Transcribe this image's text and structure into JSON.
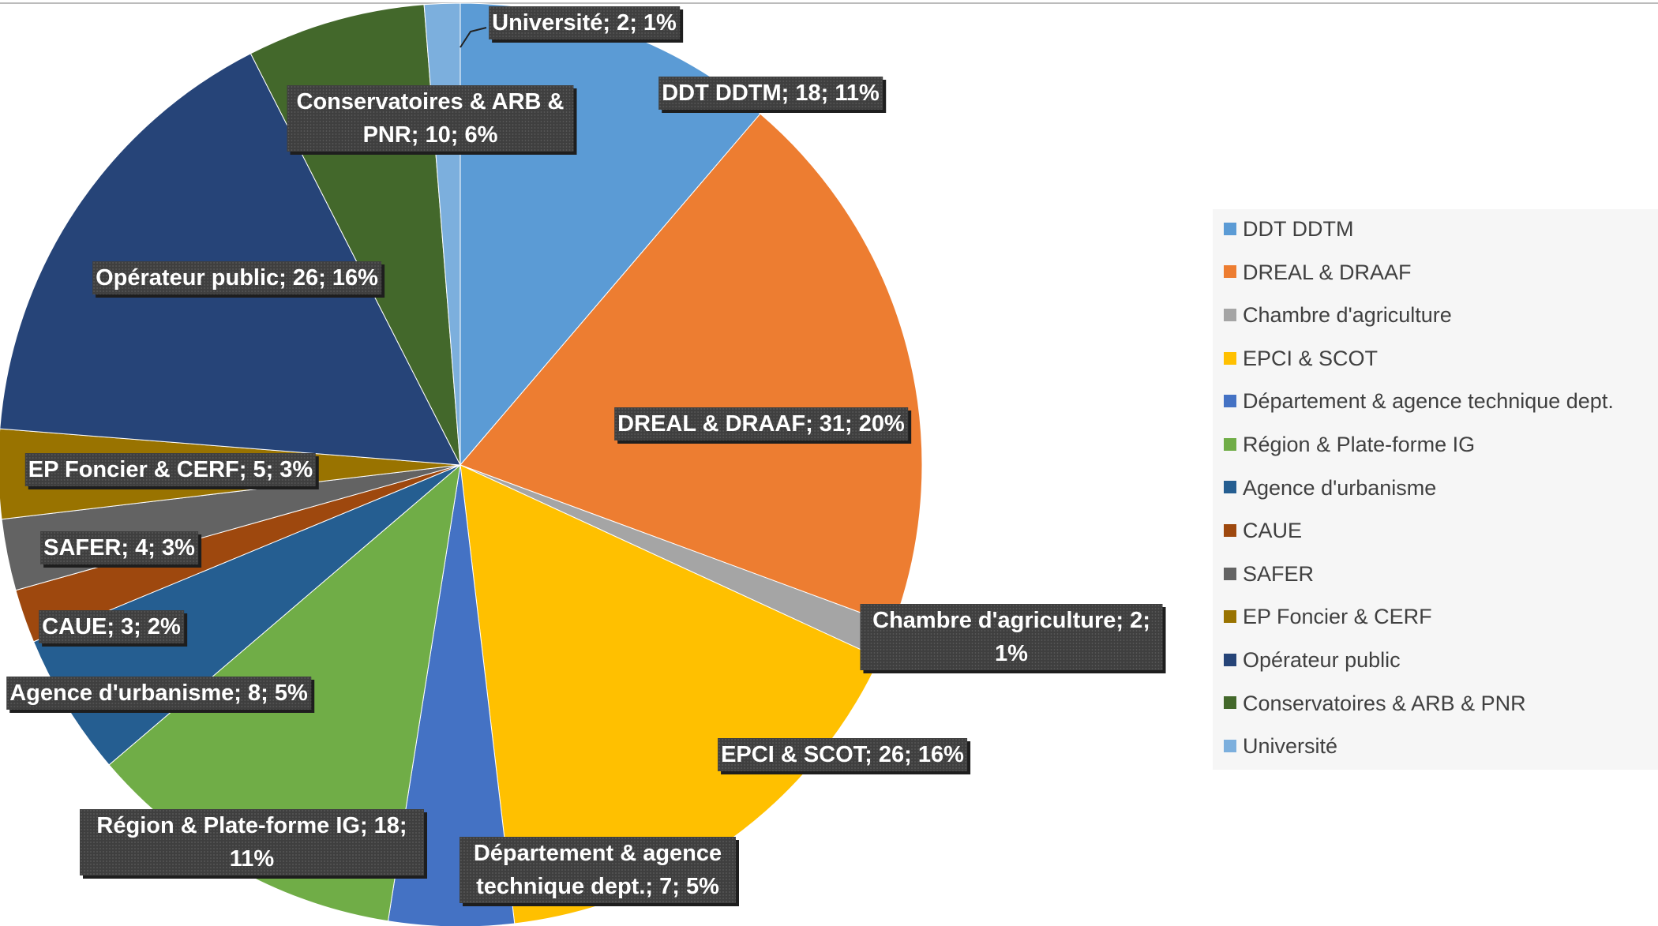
{
  "chart_data": {
    "type": "pie",
    "categories": [
      "DDT DDTM",
      "DREAL & DRAAF",
      "Chambre d'agriculture",
      "EPCI & SCOT",
      "Département & agence technique dept.",
      "Région & Plate-forme IG",
      "Agence d'urbanisme",
      "CAUE",
      "SAFER",
      "EP Foncier & CERF",
      "Opérateur public",
      "Conservatoires & ARB & PNR",
      "Université"
    ],
    "values": [
      18,
      31,
      2,
      26,
      7,
      18,
      8,
      3,
      4,
      5,
      26,
      10,
      2
    ],
    "value_labels": [
      "DDT DDTM; 18; 11%",
      "DREAL & DRAAF; 31; 20%",
      "Chambre d'agriculture; 2; 1%",
      "EPCI & SCOT; 26; 16%",
      "Département & agence technique dept.; 7; 5%",
      "Région & Plate-forme IG; 18; 11%",
      "Agence d'urbanisme; 8; 5%",
      "CAUE; 3; 2%",
      "SAFER; 4; 3%",
      "EP Foncier & CERF; 5; 3%",
      "Opérateur public; 26; 16%",
      "Conservatoires & ARB & PNR; 10; 6%",
      "Université; 2; 1%"
    ],
    "colors": [
      "#5b9bd5",
      "#ed7d31",
      "#a5a5a5",
      "#ffc000",
      "#4472c4",
      "#70ad47",
      "#255e91",
      "#9e480e",
      "#636363",
      "#997300",
      "#264478",
      "#43682b",
      "#7cafdd"
    ],
    "legend": "right"
  }
}
